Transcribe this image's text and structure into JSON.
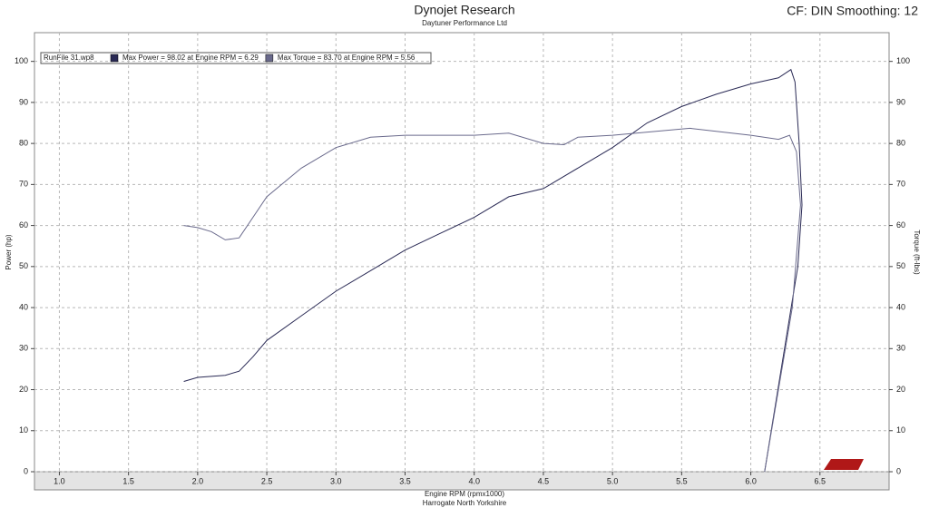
{
  "chart_data": {
    "type": "line",
    "title": "Dynojet Research",
    "subtitle": "Daytuner Performance Ltd",
    "corner_text": "CF: DIN Smoothing: 12",
    "x_label": "Engine RPM (rpmx1000)",
    "y_label": "Power (hp)",
    "y2_label": "Torque (ft-lbs)",
    "footer": "Harrogate North Yorkshire",
    "run_file": "RunFile    31.wp8",
    "grid": true,
    "xlim": [
      0.82,
      7.0
    ],
    "ylim": [
      0,
      107
    ],
    "y2lim": [
      0,
      107
    ],
    "xticks": [
      {
        "value": 1.0,
        "label": "1.0"
      },
      {
        "value": 1.5,
        "label": "1.5"
      },
      {
        "value": 2.0,
        "label": "2.0"
      },
      {
        "value": 2.5,
        "label": "2.5"
      },
      {
        "value": 3.0,
        "label": "3.0"
      },
      {
        "value": 3.5,
        "label": "3.5"
      },
      {
        "value": 4.0,
        "label": "4.0"
      },
      {
        "value": 4.5,
        "label": "4.5"
      },
      {
        "value": 5.0,
        "label": "5.0"
      },
      {
        "value": 5.5,
        "label": "5.5"
      },
      {
        "value": 6.0,
        "label": "6.0"
      },
      {
        "value": 6.5,
        "label": "6.5"
      }
    ],
    "yticks": [
      0,
      10,
      20,
      30,
      40,
      50,
      60,
      70,
      80,
      90,
      100
    ],
    "y2ticks": [
      0,
      10,
      20,
      30,
      40,
      50,
      60,
      70,
      80,
      90,
      100
    ],
    "series": [
      {
        "name": "Max Power = 98.02 at Engine RPM = 6.29",
        "color": "#2a2a55",
        "x": [
          1.9,
          2.0,
          2.2,
          2.3,
          2.4,
          2.5,
          2.75,
          3.0,
          3.25,
          3.5,
          3.75,
          4.0,
          4.25,
          4.5,
          4.75,
          5.0,
          5.25,
          5.5,
          5.75,
          6.0,
          6.2,
          6.29,
          6.32,
          6.35,
          6.37,
          6.34,
          6.1
        ],
        "values": [
          22,
          23,
          23.5,
          24.5,
          28,
          32,
          38,
          44,
          49,
          54,
          58,
          62,
          67,
          69,
          74,
          79,
          85,
          89,
          92,
          94.5,
          96,
          98,
          95,
          80,
          65,
          50,
          0
        ]
      },
      {
        "name": "Max Torque = 83.70 at Engine RPM = 5.56",
        "color": "#6a6a8c",
        "axis": "y2",
        "x": [
          1.9,
          2.0,
          2.1,
          2.2,
          2.3,
          2.4,
          2.5,
          2.75,
          3.0,
          3.25,
          3.5,
          4.0,
          4.25,
          4.5,
          4.65,
          4.75,
          5.0,
          5.56,
          6.0,
          6.2,
          6.28,
          6.33,
          6.36,
          6.3,
          6.1
        ],
        "values": [
          60,
          59.5,
          58.5,
          56.5,
          57,
          62,
          67,
          74,
          79,
          81.5,
          82,
          82,
          82.5,
          80,
          79.7,
          81.5,
          82,
          83.7,
          82,
          81,
          82,
          78,
          65,
          40,
          0
        ]
      }
    ]
  }
}
